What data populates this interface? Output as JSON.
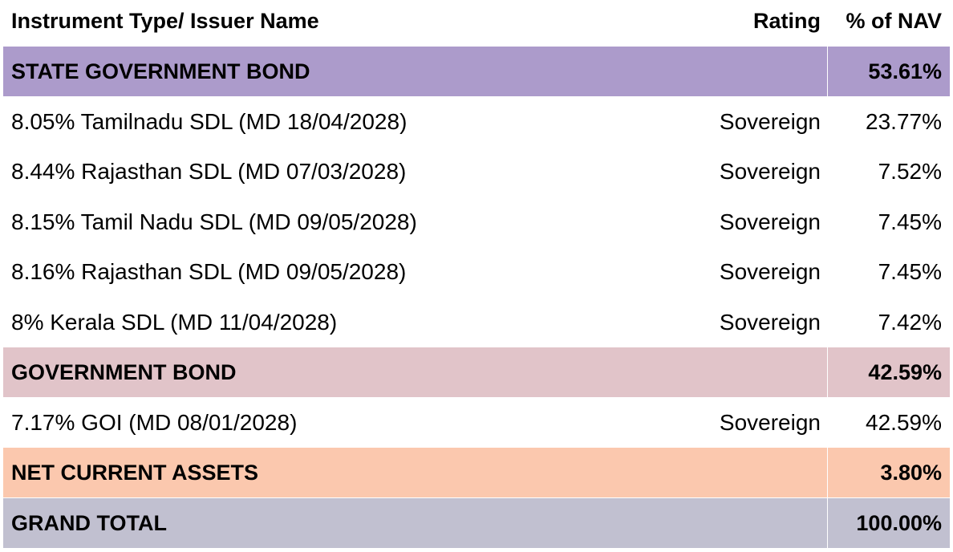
{
  "header": {
    "name": "Instrument Type/ Issuer Name",
    "rating": "Rating",
    "nav": "% of NAV"
  },
  "sections": {
    "state": {
      "label": "STATE GOVERNMENT BOND",
      "nav": "53.61%",
      "color": "#ac9bcb",
      "items": [
        {
          "name": "8.05% Tamilnadu SDL (MD 18/04/2028)",
          "rating": "Sovereign",
          "nav": "23.77%"
        },
        {
          "name": "8.44% Rajasthan SDL (MD 07/03/2028)",
          "rating": "Sovereign",
          "nav": "7.52%"
        },
        {
          "name": "8.15% Tamil Nadu SDL (MD 09/05/2028)",
          "rating": "Sovereign",
          "nav": "7.45%"
        },
        {
          "name": "8.16% Rajasthan SDL (MD 09/05/2028)",
          "rating": "Sovereign",
          "nav": "7.45%"
        },
        {
          "name": "8% Kerala SDL (MD 11/04/2028)",
          "rating": "Sovereign",
          "nav": "7.42%"
        }
      ]
    },
    "gov": {
      "label": "GOVERNMENT BOND",
      "nav": "42.59%",
      "color": "#e1c4c9",
      "items": [
        {
          "name": "7.17% GOI (MD 08/01/2028)",
          "rating": "Sovereign",
          "nav": "42.59%"
        }
      ]
    },
    "nca": {
      "label": "NET CURRENT ASSETS",
      "nav": "3.80%",
      "color": "#fbc8ae"
    },
    "total": {
      "label": "GRAND TOTAL",
      "nav": "100.00%",
      "color": "#c1c0d0"
    }
  }
}
